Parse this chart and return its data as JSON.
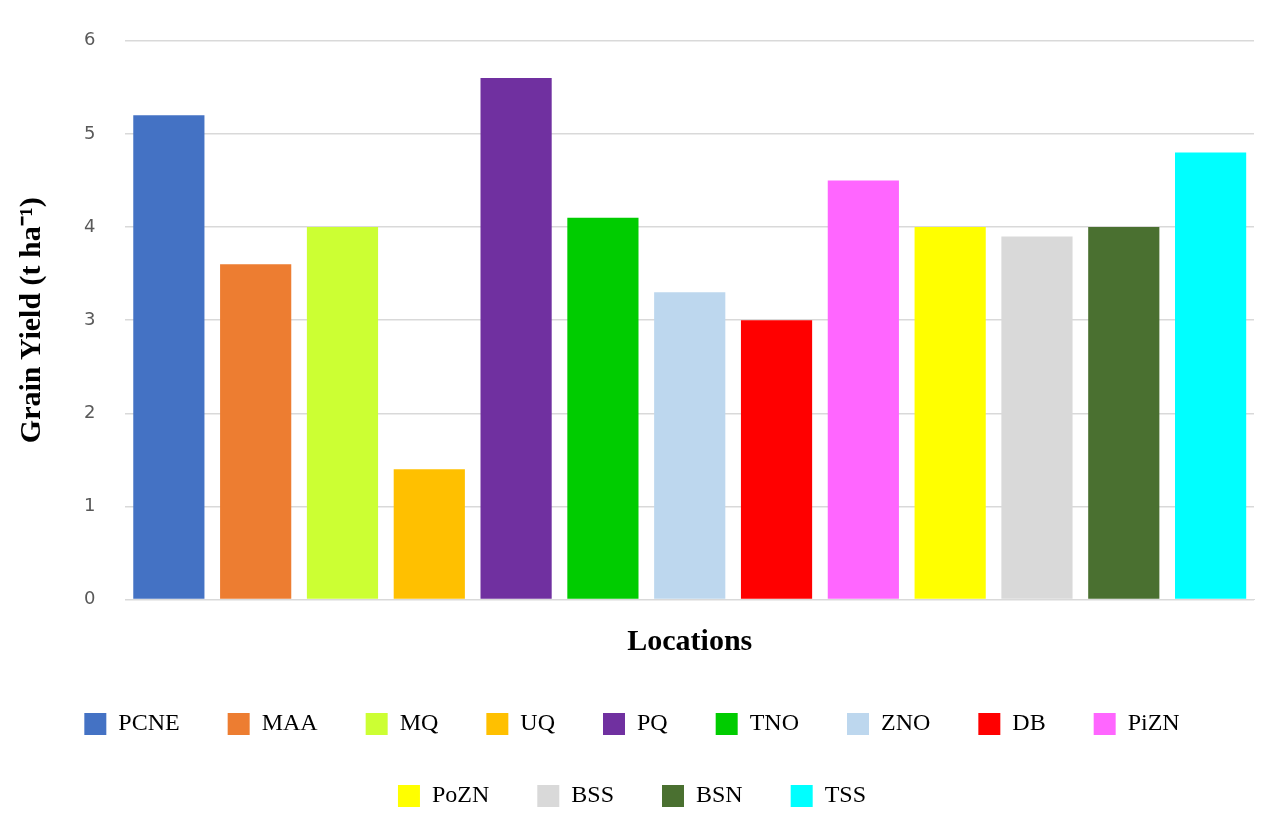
{
  "chart_data": {
    "type": "bar",
    "xlabel": "Locations",
    "ylabel": "Grain Yield (t ha⁻¹)",
    "categories": [
      null,
      null,
      null,
      null,
      null,
      null,
      null,
      null,
      null,
      null,
      null,
      null,
      null
    ],
    "series": [
      {
        "name": "PCNE",
        "color": "#4472c4",
        "values": [
          5.2,
          null,
          null,
          null,
          null,
          null,
          null,
          null,
          null,
          null,
          null,
          null,
          null
        ]
      },
      {
        "name": "MAA",
        "color": "#ed7d31",
        "values": [
          null,
          3.6,
          null,
          null,
          null,
          null,
          null,
          null,
          null,
          null,
          null,
          null,
          null
        ]
      },
      {
        "name": "MQ",
        "color": "#ccff33",
        "values": [
          null,
          null,
          4.0,
          null,
          null,
          null,
          null,
          null,
          null,
          null,
          null,
          null,
          null
        ]
      },
      {
        "name": "UQ",
        "color": "#ffc000",
        "values": [
          null,
          null,
          null,
          1.4,
          null,
          null,
          null,
          null,
          null,
          null,
          null,
          null,
          null
        ]
      },
      {
        "name": "PQ",
        "color": "#7030a0",
        "values": [
          null,
          null,
          null,
          null,
          5.6,
          null,
          null,
          null,
          null,
          null,
          null,
          null,
          null
        ]
      },
      {
        "name": "TNO",
        "color": "#00cc00",
        "values": [
          null,
          null,
          null,
          null,
          null,
          4.1,
          null,
          null,
          null,
          null,
          null,
          null,
          null
        ]
      },
      {
        "name": "ZNO",
        "color": "#bdd7ee",
        "values": [
          null,
          null,
          null,
          null,
          null,
          null,
          3.3,
          null,
          null,
          null,
          null,
          null,
          null
        ]
      },
      {
        "name": "DB",
        "color": "#ff0000",
        "values": [
          null,
          null,
          null,
          null,
          null,
          null,
          null,
          3.0,
          null,
          null,
          null,
          null,
          null
        ]
      },
      {
        "name": "PiZN",
        "color": "#ff66ff",
        "values": [
          null,
          null,
          null,
          null,
          null,
          null,
          null,
          null,
          4.5,
          null,
          null,
          null,
          null
        ]
      },
      {
        "name": "PoZN",
        "color": "#ffff00",
        "values": [
          null,
          null,
          null,
          null,
          null,
          null,
          null,
          null,
          null,
          4.0,
          null,
          null,
          null
        ]
      },
      {
        "name": "BSS",
        "color": "#d9d9d9",
        "values": [
          null,
          null,
          null,
          null,
          null,
          null,
          null,
          null,
          null,
          null,
          3.9,
          null,
          null
        ]
      },
      {
        "name": "BSN",
        "color": "#4a7030",
        "values": [
          null,
          null,
          null,
          null,
          null,
          null,
          null,
          null,
          null,
          null,
          null,
          4.0,
          null
        ]
      },
      {
        "name": "TSS",
        "color": "#00ffff",
        "values": [
          null,
          null,
          null,
          null,
          null,
          null,
          null,
          null,
          null,
          null,
          null,
          null,
          4.8
        ]
      }
    ],
    "ylim": [
      0,
      6
    ],
    "yticks": [
      0,
      1,
      2,
      3,
      4,
      5,
      6
    ],
    "grid": "y",
    "legend": "bottom"
  }
}
